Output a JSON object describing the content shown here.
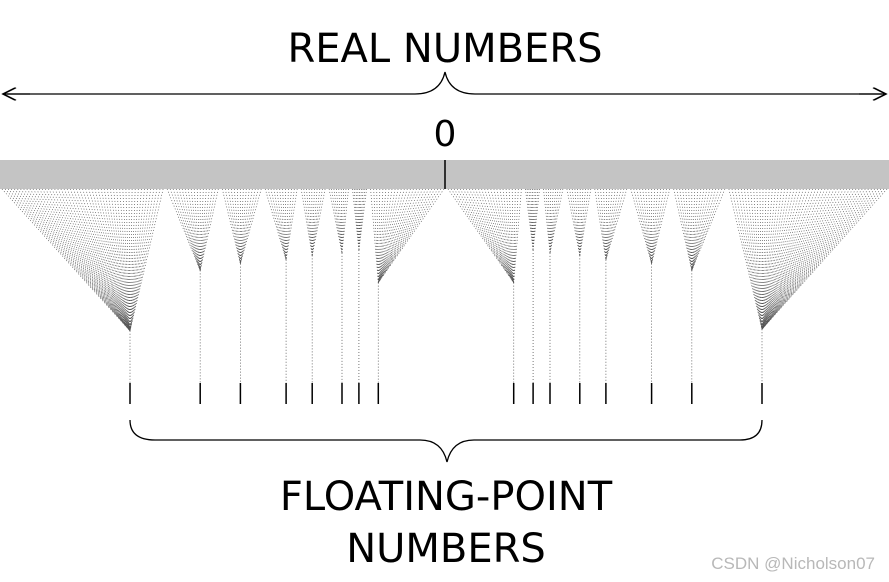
{
  "title": "REAL NUMBERS",
  "zero_label": "0",
  "bottom_label_line1": "FLOATING-POINT",
  "bottom_label_line2": "NUMBERS",
  "watermark": "CSDN @Nicholson07",
  "colors": {
    "text": "#000000",
    "real_line_band": "#c4c4c4",
    "dots": "#555555",
    "watermark": "#b8b8b8"
  },
  "float_points": [
    -6,
    -4,
    -3,
    -2,
    -1.5,
    -1,
    -0.75,
    -0.5,
    0.5,
    0.75,
    1,
    1.5,
    2,
    3,
    4,
    6
  ]
}
